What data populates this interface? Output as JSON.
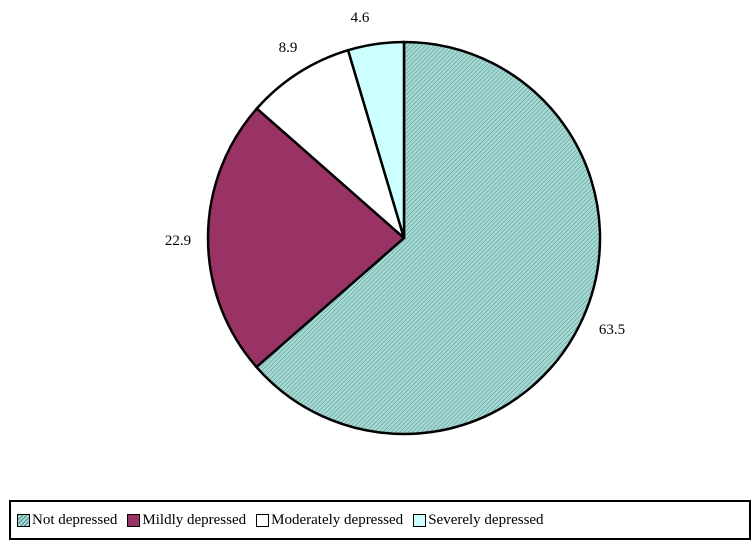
{
  "chart_data": {
    "type": "pie",
    "categories": [
      "Not depressed",
      "Mildly depressed",
      "Moderately depressed",
      "Severely depressed"
    ],
    "values": [
      63.5,
      22.9,
      8.9,
      4.6
    ],
    "value_labels": [
      "63.5",
      "22.9",
      "8.9",
      "4.6"
    ],
    "colors": [
      "#9fd3cf",
      "#993366",
      "#ffffff",
      "#ccffff"
    ],
    "patterns": [
      "diagonal-hatch",
      "solid",
      "solid",
      "solid"
    ],
    "start_angle": "12 o'clock",
    "direction": "clockwise",
    "legend_position": "bottom"
  },
  "legend": {
    "items": [
      {
        "label": "Not depressed",
        "color": "#9fd3cf"
      },
      {
        "label": "Mildly depressed",
        "color": "#993366"
      },
      {
        "label": "Moderately depressed",
        "color": "#ffffff"
      },
      {
        "label": "Severely depressed",
        "color": "#ccffff"
      }
    ]
  }
}
